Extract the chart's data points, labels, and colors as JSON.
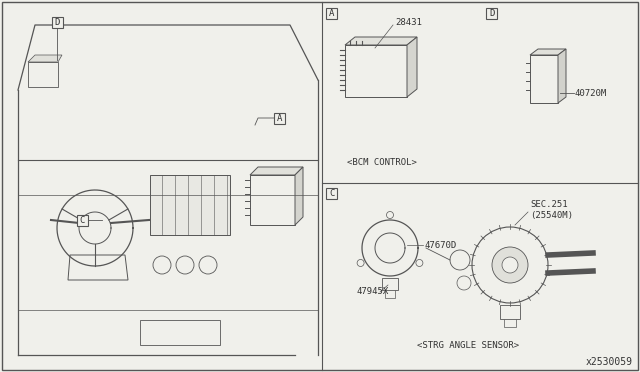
{
  "bg_color": "#f0f0eb",
  "border_color": "#555555",
  "line_color": "#555555",
  "text_color": "#333333",
  "diagram_id": "x2530059",
  "panels": {
    "A_label": "A",
    "A_part": "28431",
    "A_caption": "<BCM CONTROL>",
    "D_label": "D",
    "D_part": "40720M",
    "C_label": "C",
    "C_part1": "47670D",
    "C_part2": "47945X",
    "C_part3": "SEC.251\n(25540M)",
    "C_caption": "<STRG ANGLE SENSOR>"
  }
}
